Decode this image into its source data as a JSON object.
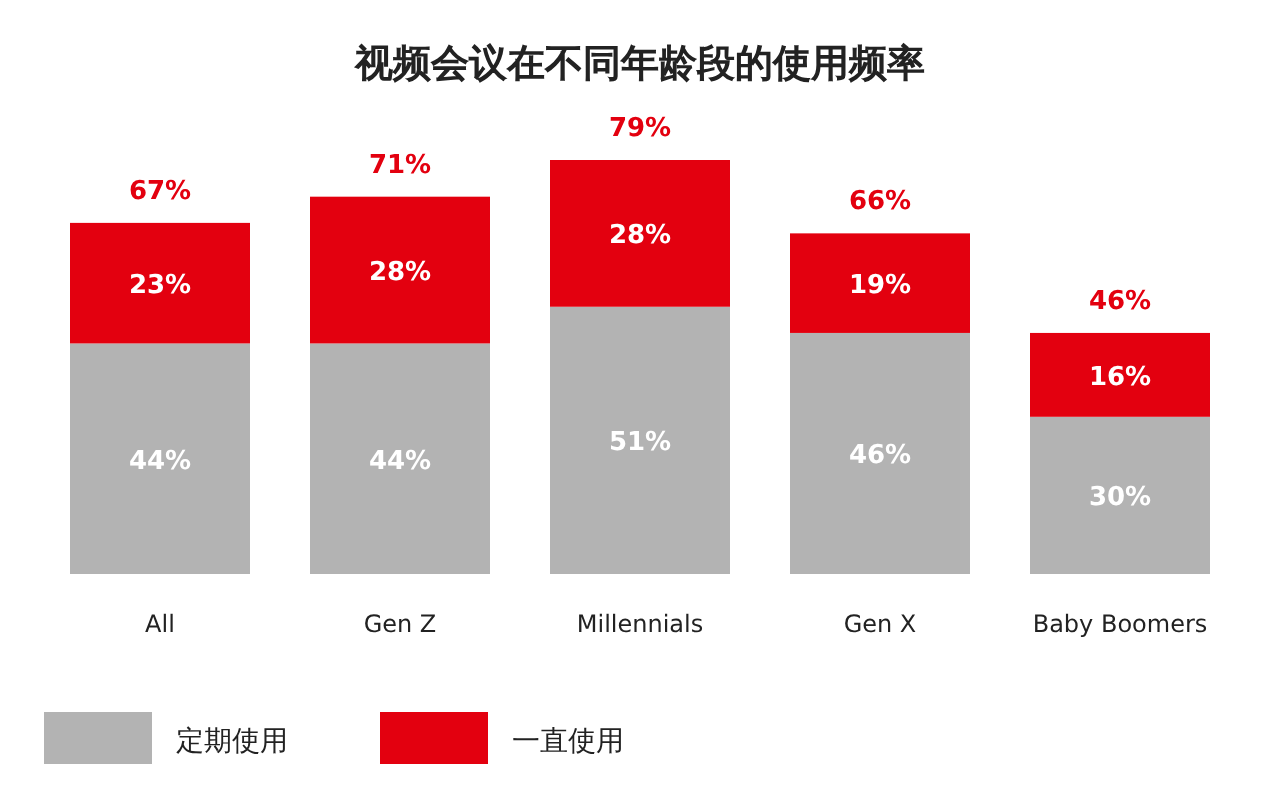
{
  "chart_data": {
    "type": "bar",
    "stacked": true,
    "title": "视频会议在不同年龄段的使用频率",
    "categories": [
      "All",
      "Gen Z",
      "Millennials",
      "Gen X",
      "Baby Boomers"
    ],
    "series": [
      {
        "name": "定期使用",
        "color": "#b3b3b3",
        "values": [
          44,
          44,
          51,
          46,
          30
        ],
        "value_labels": [
          "44%",
          "44%",
          "51%",
          "46%",
          "30%"
        ]
      },
      {
        "name": "一直使用",
        "color": "#e3000f",
        "values": [
          23,
          28,
          28,
          19,
          16
        ],
        "value_labels": [
          "23%",
          "28%",
          "28%",
          "19%",
          "16%"
        ]
      }
    ],
    "totals": [
      "67%",
      "71%",
      "79%",
      "66%",
      "46%"
    ],
    "legend": "bottom",
    "grid": false
  }
}
